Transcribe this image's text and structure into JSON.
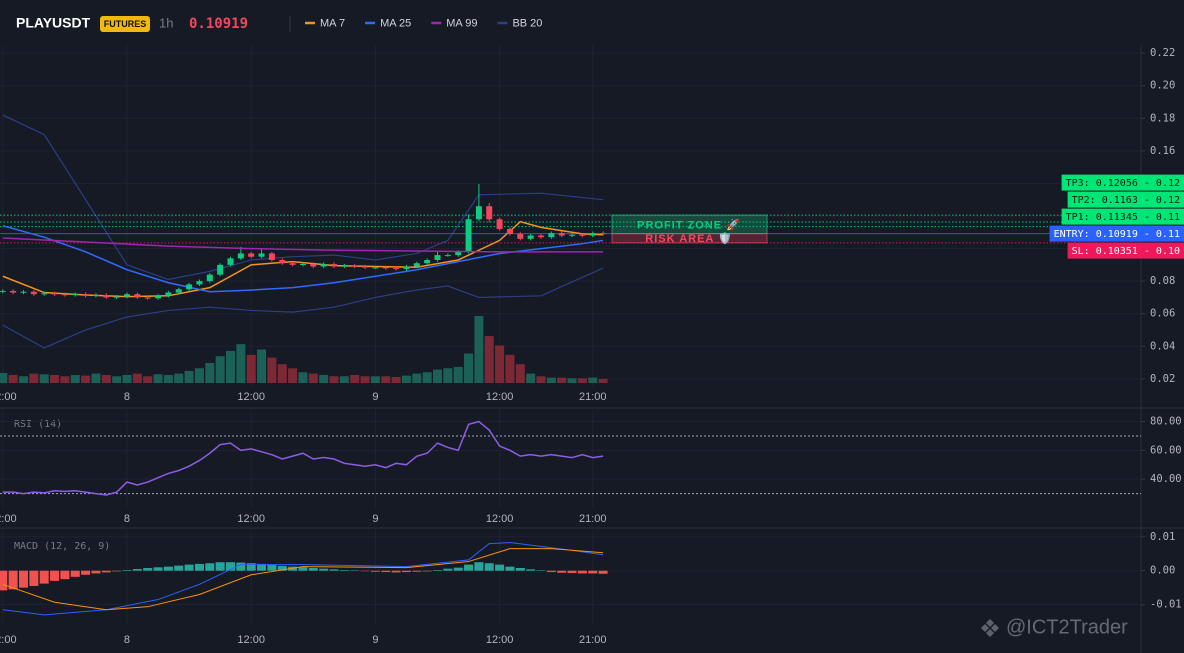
{
  "chart_data": [
    {
      "type": "candlestick",
      "title": "PLAYUSDT",
      "badge": "FUTURES",
      "interval": "1h",
      "last_price": 0.10919,
      "xlim": [
        -12.27,
        97.97
      ],
      "xticks": [
        {
          "value": -12,
          "label": "12:00"
        },
        {
          "value": 0,
          "label": "8"
        },
        {
          "value": 12,
          "label": "12:00"
        },
        {
          "value": 24,
          "label": "9"
        },
        {
          "value": 36,
          "label": "12:00"
        },
        {
          "value": 45,
          "label": "21:00"
        }
      ],
      "ylim": [
        0.015,
        0.225
      ],
      "yticks": [
        0.02,
        0.04,
        0.06,
        0.08,
        {
          "value": 0.1,
          "label": "0.10"
        },
        0.12,
        0.14,
        0.16,
        0.18,
        {
          "value": 0.2,
          "label": "0.20"
        },
        0.22
      ],
      "grid": true,
      "up_color": "#0ecb81",
      "down_color": "#f6465d",
      "volume_up_color": "#1c6158",
      "volume_down_color": "#7d2935",
      "x": [
        -12,
        -11,
        -10,
        -9,
        -8,
        -7,
        -6,
        -5,
        -4,
        -3,
        -2,
        -1,
        0,
        1,
        2,
        3,
        4,
        5,
        6,
        7,
        8,
        9,
        10,
        11,
        12,
        13,
        14,
        15,
        16,
        17,
        18,
        19,
        20,
        21,
        22,
        23,
        24,
        25,
        26,
        27,
        28,
        29,
        30,
        31,
        32,
        33,
        34,
        35,
        36,
        37,
        38,
        39,
        40,
        41,
        42,
        43,
        44,
        45,
        46
      ],
      "open": [
        0.0735,
        0.074,
        0.073,
        0.0735,
        0.072,
        0.0725,
        0.072,
        0.0715,
        0.072,
        0.071,
        0.0715,
        0.07,
        0.0705,
        0.072,
        0.07,
        0.0695,
        0.071,
        0.073,
        0.075,
        0.078,
        0.08,
        0.084,
        0.09,
        0.094,
        0.097,
        0.095,
        0.097,
        0.093,
        0.091,
        0.09,
        0.0905,
        0.089,
        0.0905,
        0.089,
        0.0895,
        0.089,
        0.0885,
        0.0885,
        0.088,
        0.0875,
        0.089,
        0.091,
        0.093,
        0.096,
        0.096,
        0.098,
        0.118,
        0.126,
        0.118,
        0.112,
        0.109,
        0.106,
        0.108,
        0.107,
        0.1095,
        0.108,
        0.1085,
        0.108,
        0.1095
      ],
      "high": [
        0.075,
        0.075,
        0.0745,
        0.0745,
        0.0735,
        0.0735,
        0.073,
        0.073,
        0.073,
        0.0725,
        0.0725,
        0.0715,
        0.073,
        0.073,
        0.071,
        0.072,
        0.074,
        0.076,
        0.079,
        0.081,
        0.085,
        0.091,
        0.095,
        0.101,
        0.098,
        0.1,
        0.098,
        0.094,
        0.092,
        0.0915,
        0.0915,
        0.0915,
        0.0915,
        0.0905,
        0.0905,
        0.09,
        0.0895,
        0.0895,
        0.089,
        0.09,
        0.092,
        0.094,
        0.098,
        0.097,
        0.099,
        0.121,
        0.1396,
        0.128,
        0.119,
        0.113,
        0.11,
        0.109,
        0.109,
        0.1105,
        0.1105,
        0.1095,
        0.1095,
        0.1105,
        0.1105
      ],
      "low": [
        0.0725,
        0.072,
        0.072,
        0.071,
        0.071,
        0.071,
        0.0705,
        0.0705,
        0.07,
        0.07,
        0.069,
        0.069,
        0.0695,
        0.069,
        0.0685,
        0.0685,
        0.07,
        0.072,
        0.074,
        0.077,
        0.079,
        0.083,
        0.089,
        0.093,
        0.094,
        0.094,
        0.092,
        0.09,
        0.089,
        0.089,
        0.088,
        0.088,
        0.088,
        0.088,
        0.088,
        0.0875,
        0.0875,
        0.087,
        0.0865,
        0.0865,
        0.088,
        0.09,
        0.092,
        0.095,
        0.095,
        0.097,
        0.117,
        0.116,
        0.111,
        0.108,
        0.105,
        0.105,
        0.106,
        0.106,
        0.107,
        0.107,
        0.107,
        0.107,
        0.108
      ],
      "close": [
        0.074,
        0.073,
        0.0735,
        0.072,
        0.0725,
        0.072,
        0.0715,
        0.072,
        0.071,
        0.0715,
        0.07,
        0.0705,
        0.072,
        0.07,
        0.0695,
        0.071,
        0.073,
        0.075,
        0.078,
        0.08,
        0.084,
        0.09,
        0.094,
        0.097,
        0.095,
        0.097,
        0.093,
        0.091,
        0.09,
        0.0905,
        0.089,
        0.0905,
        0.089,
        0.0895,
        0.089,
        0.0885,
        0.0885,
        0.088,
        0.0875,
        0.089,
        0.091,
        0.093,
        0.096,
        0.096,
        0.098,
        0.118,
        0.126,
        0.118,
        0.112,
        0.109,
        0.106,
        0.108,
        0.107,
        0.1095,
        0.108,
        0.1085,
        0.108,
        0.1095,
        0.10919
      ],
      "vlim": [
        0,
        100
      ],
      "volume": [
        15,
        12,
        10,
        14,
        13,
        12,
        10,
        12,
        11,
        14,
        12,
        10,
        12,
        14,
        10,
        13,
        12,
        14,
        18,
        22,
        30,
        40,
        48,
        58,
        42,
        50,
        38,
        28,
        22,
        16,
        14,
        12,
        10,
        10,
        12,
        10,
        10,
        10,
        9,
        11,
        14,
        16,
        20,
        22,
        24,
        44,
        100,
        70,
        56,
        42,
        28,
        14,
        10,
        8,
        8,
        7,
        7,
        8,
        6
      ],
      "series": [
        {
          "name": "MA 7",
          "color": "#f7931a",
          "x": [
            -12,
            -8,
            -4,
            0,
            4,
            8,
            12,
            16,
            20,
            24,
            28,
            32,
            36,
            38,
            40,
            44,
            46
          ],
          "values": [
            0.083,
            0.073,
            0.0715,
            0.0705,
            0.071,
            0.076,
            0.09,
            0.092,
            0.0895,
            0.089,
            0.0885,
            0.093,
            0.105,
            0.1165,
            0.113,
            0.109,
            0.1085
          ]
        },
        {
          "name": "MA 25",
          "color": "#2f6bff",
          "x": [
            -12,
            -8,
            -4,
            0,
            4,
            8,
            12,
            16,
            20,
            24,
            28,
            32,
            36,
            40,
            44,
            46
          ],
          "values": [
            0.114,
            0.107,
            0.098,
            0.087,
            0.079,
            0.0735,
            0.0745,
            0.076,
            0.079,
            0.083,
            0.087,
            0.092,
            0.097,
            0.1,
            0.103,
            0.105
          ]
        },
        {
          "name": "MA 99",
          "color": "#9c27b0",
          "x": [
            -12,
            -4,
            4,
            12,
            20,
            28,
            36,
            46
          ],
          "values": [
            0.1065,
            0.104,
            0.1015,
            0.1,
            0.099,
            0.0985,
            0.098,
            0.098
          ]
        }
      ],
      "bands": {
        "name": "BB 20",
        "color": "#2a3f86",
        "x": [
          -12,
          -8,
          -4,
          0,
          4,
          8,
          12,
          16,
          20,
          24,
          28,
          31,
          34,
          40,
          46
        ],
        "upper": [
          0.182,
          0.17,
          0.13,
          0.09,
          0.081,
          0.086,
          0.093,
          0.095,
          0.096,
          0.093,
          0.097,
          0.105,
          0.133,
          0.134,
          0.13
        ],
        "lower": [
          0.053,
          0.039,
          0.05,
          0.058,
          0.062,
          0.064,
          0.062,
          0.061,
          0.064,
          0.07,
          0.0746,
          0.077,
          0.07,
          0.071,
          0.088
        ]
      },
      "levels": [
        {
          "label": "TP3: 0.12056 - 0.12",
          "value": 0.12056,
          "color": "#00e676",
          "text_color": "#0b1f14",
          "style": "dotted"
        },
        {
          "label": "TP2: 0.1163 - 0.12",
          "value": 0.1163,
          "color": "#00e676",
          "text_color": "#0b1f14",
          "style": "dotted"
        },
        {
          "label": "TP1: 0.11345 - 0.11",
          "value": 0.11345,
          "color": "#00e676",
          "text_color": "#0b1f14",
          "style": "dotted"
        },
        {
          "label": "ENTRY: 0.10919 - 0.11",
          "value": 0.10919,
          "color": "#2962ff",
          "text_color": "#ffffff",
          "style": "solid"
        },
        {
          "label": "SL: 0.10351 - 0.10",
          "value": 0.10351,
          "color": "#f0185a",
          "text_color": "#ffffff",
          "style": "dotted"
        }
      ],
      "zones": [
        {
          "label": "PROFIT ZONE 🚀",
          "from": 0.10919,
          "to": 0.12056,
          "color": "#0ecb81"
        },
        {
          "label": "RISK AREA 🛡️",
          "from": 0.10351,
          "to": 0.10919,
          "color": "#f6465d"
        }
      ]
    },
    {
      "type": "line",
      "title": "RSI (14)",
      "xlim": [
        -12.27,
        97.97
      ],
      "xticks": [
        {
          "value": -12,
          "label": "12:00"
        },
        {
          "value": 0,
          "label": "8"
        },
        {
          "value": 12,
          "label": "12:00"
        },
        {
          "value": 24,
          "label": "9"
        },
        {
          "value": 36,
          "label": "12:00"
        },
        {
          "value": 45,
          "label": "21:00"
        }
      ],
      "ylim": [
        20,
        88
      ],
      "yticks": [
        {
          "value": 40,
          "label": "40.00"
        },
        {
          "value": 60,
          "label": "60.00"
        },
        {
          "value": 80,
          "label": "80.00"
        }
      ],
      "levels": [
        70,
        30
      ],
      "series": [
        {
          "color": "#8e5ce6",
          "x": [
            -12,
            -11,
            -10,
            -9,
            -8,
            -7,
            -6,
            -5,
            -4,
            -3,
            -2,
            -1,
            0,
            1,
            2,
            3,
            4,
            5,
            6,
            7,
            8,
            9,
            10,
            11,
            12,
            13,
            14,
            15,
            16,
            17,
            18,
            19,
            20,
            21,
            22,
            23,
            24,
            25,
            26,
            27,
            28,
            29,
            30,
            31,
            32,
            33,
            34,
            35,
            36,
            37,
            38,
            39,
            40,
            41,
            42,
            43,
            44,
            45,
            46
          ],
          "values": [
            31,
            31,
            30,
            31,
            30.5,
            32,
            31.5,
            32,
            31,
            30,
            29,
            31,
            38,
            36,
            38,
            41,
            44,
            46,
            49,
            53,
            58,
            64,
            65,
            60,
            61,
            59,
            57,
            54,
            56,
            58,
            54,
            55,
            54,
            51,
            50,
            49,
            50,
            48,
            51,
            50,
            56,
            58,
            65,
            62,
            60,
            78,
            80,
            74,
            63,
            60,
            56,
            57,
            56,
            57,
            56,
            55,
            57,
            55,
            56
          ]
        }
      ]
    },
    {
      "type": "macd",
      "title": "MACD (12, 26, 9)",
      "xlim": [
        -12.27,
        97.97
      ],
      "xticks": [
        {
          "value": -12,
          "label": "12:00"
        },
        {
          "value": 0,
          "label": "8"
        },
        {
          "value": 12,
          "label": "12:00"
        },
        {
          "value": 24,
          "label": "9"
        },
        {
          "value": 36,
          "label": "12:00"
        },
        {
          "value": 45,
          "label": "21:00"
        }
      ],
      "ylim": [
        -0.016,
        0.012
      ],
      "yticks": [
        -0.01,
        {
          "value": 0,
          "label": "0.00"
        },
        0.01
      ],
      "histogram": {
        "up_color": "#26a69a",
        "down_color": "#ef5350",
        "x": [
          -12,
          -11,
          -10,
          -9,
          -8,
          -7,
          -6,
          -5,
          -4,
          -3,
          -2,
          -1,
          0,
          1,
          2,
          3,
          4,
          5,
          6,
          7,
          8,
          9,
          10,
          11,
          12,
          13,
          14,
          15,
          16,
          17,
          18,
          19,
          20,
          21,
          22,
          23,
          24,
          25,
          26,
          27,
          28,
          29,
          30,
          31,
          32,
          33,
          34,
          35,
          36,
          37,
          38,
          39,
          40,
          41,
          42,
          43,
          44,
          45,
          46
        ],
        "values": [
          -0.0058,
          -0.0055,
          -0.005,
          -0.0045,
          -0.0038,
          -0.003,
          -0.0025,
          -0.0018,
          -0.0012,
          -0.0008,
          -0.0005,
          -0.0002,
          0.0002,
          0.0005,
          0.0008,
          0.001,
          0.0012,
          0.0015,
          0.0018,
          0.002,
          0.0022,
          0.0025,
          0.0025,
          0.0024,
          0.0022,
          0.002,
          0.0017,
          0.0014,
          0.0012,
          0.001,
          0.0008,
          0.0006,
          0.0004,
          0.0002,
          0.0001,
          -0.0001,
          -0.0003,
          -0.0004,
          -0.0005,
          -0.0004,
          -0.0003,
          -0.0002,
          0.0002,
          0.0006,
          0.0009,
          0.0018,
          0.0025,
          0.0022,
          0.0018,
          0.0012,
          0.0008,
          0.0004,
          0.0001,
          -0.0004,
          -0.0006,
          -0.0007,
          -0.0008,
          -0.0008,
          -0.0009
        ]
      },
      "series": [
        {
          "color": "#2962ff",
          "x": [
            -12,
            -8,
            -2,
            3,
            7,
            11,
            17,
            27,
            33,
            35,
            37,
            43,
            46
          ],
          "values": [
            -0.0115,
            -0.013,
            -0.0115,
            -0.0085,
            -0.004,
            0.0018,
            0.0018,
            0.0012,
            0.0032,
            0.008,
            0.0083,
            0.006,
            0.0047
          ]
        },
        {
          "color": "#ff9100",
          "x": [
            -12,
            -7,
            -2,
            2,
            7,
            12,
            17,
            27,
            33,
            37,
            41,
            46
          ],
          "values": [
            -0.004,
            -0.0093,
            -0.0115,
            -0.0106,
            -0.007,
            -0.0012,
            0.0012,
            0.0009,
            0.0027,
            0.0065,
            0.0065,
            0.0053
          ]
        }
      ]
    }
  ],
  "watermark": "@ICT2Trader"
}
